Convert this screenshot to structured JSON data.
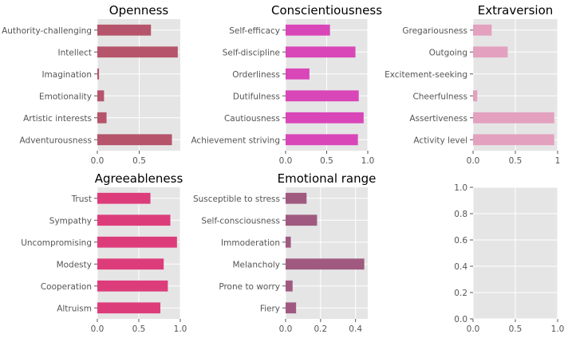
{
  "style": {
    "panel_bg": "#e5e5e5",
    "grid": "#ffffff",
    "tick_color": "#555555"
  },
  "chart_data": [
    {
      "type": "bar",
      "orientation": "horizontal",
      "title": "Openness",
      "color": "#b5546a",
      "categories": [
        "Adventurousness",
        "Artistic interests",
        "Emotionality",
        "Imagination",
        "Intellect",
        "Authority-challenging"
      ],
      "values": [
        0.89,
        0.11,
        0.08,
        0.02,
        0.96,
        0.64
      ],
      "xlim": [
        0,
        0.99
      ],
      "xticks": [
        0,
        0.5
      ],
      "xtick_labels": [
        "0.0",
        "0.5"
      ]
    },
    {
      "type": "bar",
      "orientation": "horizontal",
      "title": "Conscientiousness",
      "color": "#d946b8",
      "categories": [
        "Achievement striving",
        "Cautiousness",
        "Dutifulness",
        "Orderliness",
        "Self-discipline",
        "Self-efficacy"
      ],
      "values": [
        0.88,
        0.95,
        0.89,
        0.29,
        0.85,
        0.54
      ],
      "xlim": [
        0,
        1.0
      ],
      "xticks": [
        0,
        0.5,
        1.0
      ],
      "xtick_labels": [
        "0.0",
        "0.5",
        "1.0"
      ]
    },
    {
      "type": "bar",
      "orientation": "horizontal",
      "title": "Extraversion",
      "color": "#e3a1bf",
      "categories": [
        "Activity level",
        "Assertiveness",
        "Cheerfulness",
        "Excitement-seeking",
        "Outgoing",
        "Gregariousness"
      ],
      "values": [
        0.96,
        0.96,
        0.05,
        0.0,
        0.41,
        0.22
      ],
      "xlim": [
        0,
        1.0
      ],
      "xticks": [
        0,
        0.5,
        1.0
      ],
      "xtick_labels": [
        "0.0",
        "0.5",
        "1"
      ]
    },
    {
      "type": "bar",
      "orientation": "horizontal",
      "title": "Agreeableness",
      "color": "#dd3c7a",
      "categories": [
        "Altruism",
        "Cooperation",
        "Modesty",
        "Uncompromising",
        "Sympathy",
        "Trust"
      ],
      "values": [
        0.76,
        0.85,
        0.8,
        0.96,
        0.88,
        0.64
      ],
      "xlim": [
        0,
        1.0
      ],
      "xticks": [
        0,
        0.5,
        1.0
      ],
      "xtick_labels": [
        "0.0",
        "0.5",
        "1.0"
      ]
    },
    {
      "type": "bar",
      "orientation": "horizontal",
      "title": "Emotional range",
      "color": "#a05a80",
      "categories": [
        "Fiery",
        "Prone to worry",
        "Melancholy",
        "Immoderation",
        "Self-consciousness",
        "Susceptible to stress"
      ],
      "values": [
        0.06,
        0.04,
        0.45,
        0.03,
        0.18,
        0.12
      ],
      "xlim": [
        0,
        0.47
      ],
      "xticks": [
        0,
        0.2,
        0.4
      ],
      "xtick_labels": [
        "0.0",
        "0.2",
        "0.4"
      ]
    },
    {
      "type": "empty",
      "title": "",
      "xlim": [
        0,
        1.0
      ],
      "ylim": [
        0,
        1.0
      ],
      "xticks": [
        0,
        0.5,
        1.0
      ],
      "xtick_labels": [
        "0.0",
        "0.5",
        "1.0"
      ],
      "yticks": [
        0,
        0.2,
        0.4,
        0.6,
        0.8,
        1.0
      ],
      "ytick_labels": [
        "0.0",
        "0.2",
        "0.4",
        "0.6",
        "0.8",
        "1.0"
      ]
    }
  ]
}
